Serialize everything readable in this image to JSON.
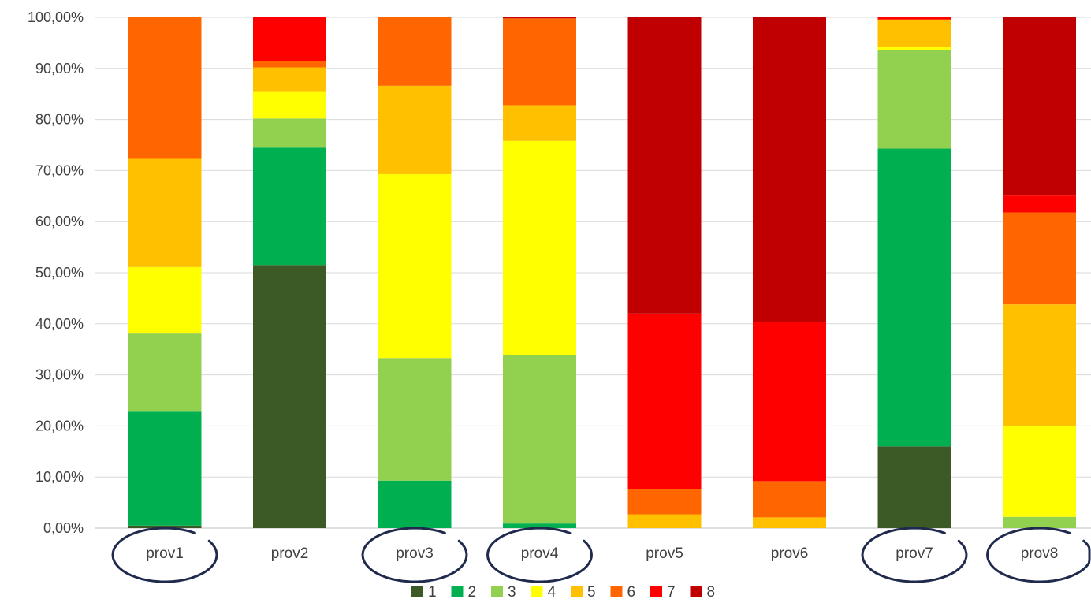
{
  "chart_data": {
    "type": "bar",
    "stacked": true,
    "percent": true,
    "categories": [
      "prov1",
      "prov2",
      "prov3",
      "prov4",
      "prov5",
      "prov6",
      "prov7",
      "prov8"
    ],
    "ylim": [
      0,
      100
    ],
    "yticks": [
      "0,00%",
      "10,00%",
      "20,00%",
      "30,00%",
      "40,00%",
      "50,00%",
      "60,00%",
      "70,00%",
      "80,00%",
      "90,00%",
      "100,00%"
    ],
    "grid": true,
    "legend_position": "bottom",
    "series": [
      {
        "name": "1",
        "color": "#3b5a25",
        "values": [
          0.5,
          51.5,
          0,
          0,
          0,
          0,
          16.0,
          0
        ]
      },
      {
        "name": "2",
        "color": "#00b050",
        "values": [
          22.3,
          23.0,
          9.3,
          0.9,
          0,
          0,
          58.3,
          0
        ]
      },
      {
        "name": "3",
        "color": "#92d050",
        "values": [
          15.3,
          5.7,
          24.0,
          32.9,
          0,
          0,
          19.3,
          2.2
        ]
      },
      {
        "name": "4",
        "color": "#ffff00",
        "values": [
          13.0,
          5.2,
          36.0,
          42.0,
          0,
          0,
          0.6,
          17.8
        ]
      },
      {
        "name": "5",
        "color": "#ffc000",
        "values": [
          21.2,
          4.8,
          17.3,
          7.0,
          2.7,
          2.1,
          5.3,
          23.8
        ]
      },
      {
        "name": "6",
        "color": "#ff6600",
        "values": [
          27.7,
          1.3,
          13.4,
          17.0,
          5.0,
          7.1,
          0.1,
          18.0
        ]
      },
      {
        "name": "7",
        "color": "#ff0000",
        "values": [
          0,
          8.5,
          0,
          0,
          34.3,
          31.1,
          0.4,
          3.3
        ]
      },
      {
        "name": "8",
        "color": "#c00000",
        "values": [
          0,
          0,
          0,
          0.2,
          58.0,
          59.7,
          0,
          34.9
        ]
      }
    ],
    "annotations": {
      "circled_categories": [
        "prov1",
        "prov3",
        "prov4",
        "prov7",
        "prov8"
      ],
      "circle_color": "#1f2a4d"
    }
  }
}
